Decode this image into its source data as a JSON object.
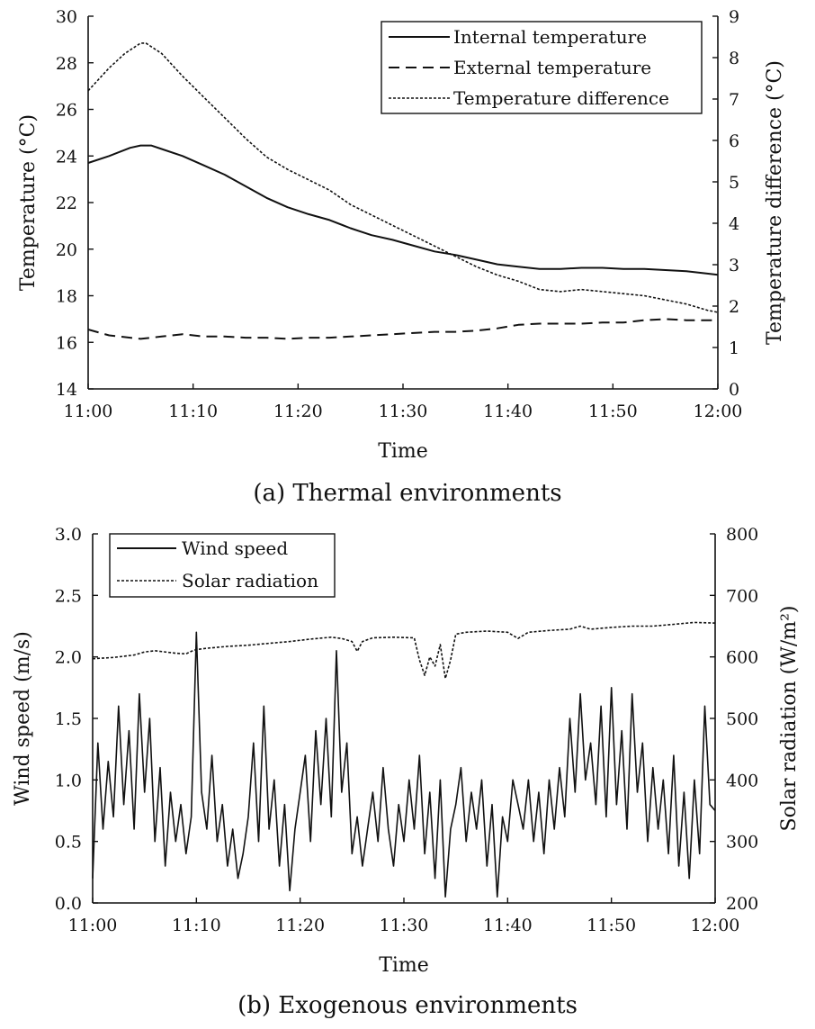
{
  "chart_data": [
    {
      "type": "line",
      "caption": "(a) Thermal environments",
      "xlabel": "Time",
      "ylabel": "Temperature (°C)",
      "y2label": "Temperature difference (°C)",
      "x_ticks": [
        "11:00",
        "11:10",
        "11:20",
        "11:30",
        "11:40",
        "11:50",
        "12:00"
      ],
      "y_ticks": [
        14,
        16,
        18,
        20,
        22,
        24,
        26,
        28,
        30
      ],
      "y2_ticks": [
        0,
        1,
        2,
        3,
        4,
        5,
        6,
        7,
        8,
        9
      ],
      "ylim": [
        14,
        30
      ],
      "y2lim": [
        0,
        9
      ],
      "xlim_minutes": [
        0,
        60
      ],
      "legend_position": "top-right",
      "series": [
        {
          "name": "Internal temperature",
          "axis": "left",
          "style": "solid",
          "x_minutes": [
            0,
            2,
            4,
            5,
            6,
            7,
            9,
            11,
            13,
            15,
            17,
            19,
            21,
            23,
            25,
            27,
            29,
            31,
            33,
            35,
            37,
            39,
            41,
            43,
            45,
            47,
            49,
            51,
            53,
            55,
            57,
            59,
            60
          ],
          "values": [
            23.7,
            24.0,
            24.35,
            24.45,
            24.45,
            24.3,
            24.0,
            23.6,
            23.2,
            22.7,
            22.2,
            21.8,
            21.5,
            21.25,
            20.9,
            20.6,
            20.4,
            20.15,
            19.9,
            19.75,
            19.55,
            19.35,
            19.25,
            19.15,
            19.15,
            19.2,
            19.2,
            19.15,
            19.15,
            19.1,
            19.05,
            18.95,
            18.9
          ]
        },
        {
          "name": "External temperature",
          "axis": "left",
          "style": "dashed",
          "x_minutes": [
            0,
            2,
            5,
            7,
            9,
            11,
            13,
            15,
            17,
            19,
            21,
            23,
            25,
            27,
            29,
            31,
            33,
            35,
            37,
            39,
            41,
            43,
            45,
            47,
            49,
            51,
            53,
            55,
            57,
            59,
            60
          ],
          "values": [
            16.55,
            16.3,
            16.15,
            16.25,
            16.35,
            16.25,
            16.25,
            16.2,
            16.2,
            16.15,
            16.2,
            16.2,
            16.25,
            16.3,
            16.35,
            16.4,
            16.45,
            16.45,
            16.5,
            16.6,
            16.75,
            16.8,
            16.8,
            16.8,
            16.85,
            16.85,
            16.95,
            17.0,
            16.95,
            16.95,
            16.95
          ]
        },
        {
          "name": "Temperature difference",
          "axis": "right",
          "style": "dotted",
          "x_minutes": [
            0,
            2,
            3.5,
            5,
            5.5,
            7,
            9,
            11,
            13,
            15,
            17,
            19,
            21,
            23,
            25,
            27,
            29,
            31,
            33,
            35,
            37,
            39,
            41,
            43,
            45,
            47,
            49,
            51,
            53,
            55,
            57,
            59,
            60
          ],
          "values": [
            7.2,
            7.75,
            8.1,
            8.35,
            8.35,
            8.1,
            7.55,
            7.05,
            6.55,
            6.05,
            5.6,
            5.3,
            5.05,
            4.8,
            4.45,
            4.2,
            3.95,
            3.7,
            3.45,
            3.2,
            2.95,
            2.75,
            2.6,
            2.4,
            2.35,
            2.4,
            2.35,
            2.3,
            2.25,
            2.15,
            2.05,
            1.9,
            1.85
          ]
        }
      ]
    },
    {
      "type": "line",
      "caption": "(b) Exogenous environments",
      "xlabel": "Time",
      "ylabel": "Wind speed (m/s)",
      "y2label": "Solar radiation (W/m²)",
      "x_ticks": [
        "11:00",
        "11:10",
        "11:20",
        "11:30",
        "11:40",
        "11:50",
        "12:00"
      ],
      "y_ticks": [
        "0.0",
        "0.5",
        "1.0",
        "1.5",
        "2.0",
        "2.5",
        "3.0"
      ],
      "y2_ticks": [
        200,
        300,
        400,
        500,
        600,
        700,
        800
      ],
      "ylim": [
        0,
        3
      ],
      "y2lim": [
        200,
        800
      ],
      "xlim_minutes": [
        0,
        60
      ],
      "legend_position": "top-left",
      "series": [
        {
          "name": "Wind speed",
          "axis": "left",
          "style": "solid",
          "x_minutes": [
            0,
            0.5,
            1,
            1.5,
            2,
            2.5,
            3,
            3.5,
            4,
            4.5,
            5,
            5.5,
            6,
            6.5,
            7,
            7.5,
            8,
            8.5,
            9,
            9.5,
            10,
            10.5,
            11,
            11.5,
            12,
            12.5,
            13,
            13.5,
            14,
            14.5,
            15,
            15.5,
            16,
            16.5,
            17,
            17.5,
            18,
            18.5,
            19,
            19.5,
            20,
            20.5,
            21,
            21.5,
            22,
            22.5,
            23,
            23.5,
            24,
            24.5,
            25,
            25.5,
            26,
            26.5,
            27,
            27.5,
            28,
            28.5,
            29,
            29.5,
            30,
            30.5,
            31,
            31.5,
            32,
            32.5,
            33,
            33.5,
            34,
            34.5,
            35,
            35.5,
            36,
            36.5,
            37,
            37.5,
            38,
            38.5,
            39,
            39.5,
            40,
            40.5,
            41,
            41.5,
            42,
            42.5,
            43,
            43.5,
            44,
            44.5,
            45,
            45.5,
            46,
            46.5,
            47,
            47.5,
            48,
            48.5,
            49,
            49.5,
            50,
            50.5,
            51,
            51.5,
            52,
            52.5,
            53,
            53.5,
            54,
            54.5,
            55,
            55.5,
            56,
            56.5,
            57,
            57.5,
            58,
            58.5,
            59,
            59.5,
            60
          ],
          "values": [
            0.2,
            1.3,
            0.6,
            1.15,
            0.7,
            1.6,
            0.8,
            1.4,
            0.6,
            1.7,
            0.9,
            1.5,
            0.5,
            1.1,
            0.3,
            0.9,
            0.5,
            0.8,
            0.4,
            0.7,
            2.2,
            0.9,
            0.6,
            1.2,
            0.5,
            0.8,
            0.3,
            0.6,
            0.2,
            0.4,
            0.7,
            1.3,
            0.5,
            1.6,
            0.6,
            1.0,
            0.3,
            0.8,
            0.1,
            0.6,
            0.9,
            1.2,
            0.5,
            1.4,
            0.8,
            1.5,
            0.7,
            2.05,
            0.9,
            1.3,
            0.4,
            0.7,
            0.3,
            0.6,
            0.9,
            0.5,
            1.1,
            0.6,
            0.3,
            0.8,
            0.5,
            1.0,
            0.6,
            1.2,
            0.4,
            0.9,
            0.2,
            1.0,
            0.05,
            0.6,
            0.8,
            1.1,
            0.5,
            0.9,
            0.6,
            1.0,
            0.3,
            0.8,
            0.05,
            0.7,
            0.5,
            1.0,
            0.8,
            0.6,
            1.0,
            0.5,
            0.9,
            0.4,
            1.0,
            0.6,
            1.1,
            0.7,
            1.5,
            0.9,
            1.7,
            1.0,
            1.3,
            0.8,
            1.6,
            0.7,
            1.75,
            0.8,
            1.4,
            0.6,
            1.7,
            0.9,
            1.3,
            0.5,
            1.1,
            0.6,
            1.0,
            0.4,
            1.2,
            0.3,
            0.9,
            0.2,
            1.0,
            0.4,
            1.6,
            0.8,
            0.75
          ]
        },
        {
          "name": "Solar radiation",
          "axis": "right",
          "style": "dotted",
          "x_minutes": [
            0,
            2,
            4,
            5,
            6,
            8,
            9,
            9.5,
            10,
            11,
            13,
            15,
            17,
            19,
            21,
            23,
            24,
            25,
            25.5,
            26,
            27,
            29,
            31,
            31.5,
            32,
            32.5,
            33,
            33.5,
            34,
            34.5,
            35,
            36,
            38,
            40,
            41,
            42,
            44,
            46,
            47,
            48,
            50,
            52,
            54,
            56,
            58,
            60
          ],
          "values": [
            597,
            599,
            603,
            608,
            610,
            606,
            605,
            609,
            612,
            614,
            617,
            619,
            622,
            625,
            629,
            632,
            630,
            625,
            609,
            625,
            631,
            632,
            631,
            595,
            570,
            600,
            585,
            620,
            565,
            595,
            637,
            640,
            642,
            640,
            630,
            640,
            643,
            645,
            650,
            645,
            648,
            650,
            650,
            653,
            656,
            655
          ]
        }
      ]
    }
  ]
}
